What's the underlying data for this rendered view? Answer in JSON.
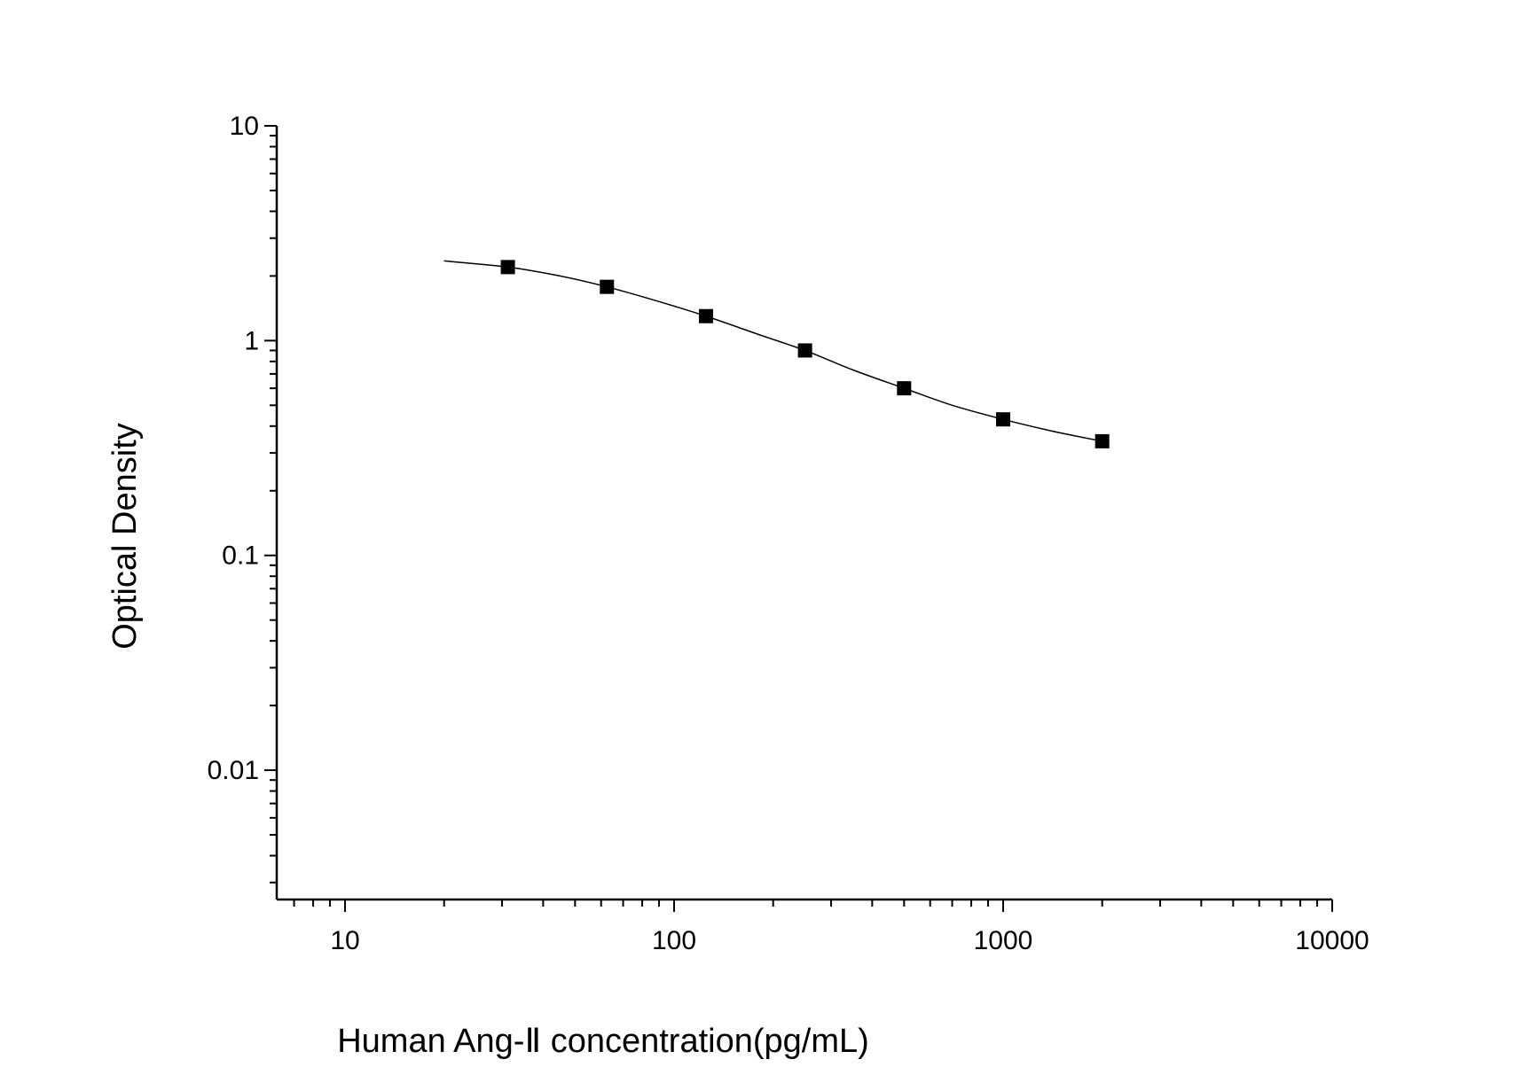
{
  "chart_data": {
    "type": "scatter",
    "title": "",
    "xlabel": "Human Ang-Ⅱ concentration(pg/mL)",
    "ylabel": "Optical Density",
    "x_scale": "log",
    "y_scale": "log",
    "xlim": [
      6.2,
      10000
    ],
    "ylim": [
      0.0025,
      10
    ],
    "x_ticks": [
      {
        "value": 10,
        "label": "10"
      },
      {
        "value": 100,
        "label": "100"
      },
      {
        "value": 1000,
        "label": "1000"
      },
      {
        "value": 10000,
        "label": "10000"
      }
    ],
    "y_ticks": [
      {
        "value": 0.01,
        "label": "0.01"
      },
      {
        "value": 0.1,
        "label": "0.1"
      },
      {
        "value": 1,
        "label": "1"
      },
      {
        "value": 10,
        "label": "10"
      }
    ],
    "grid": false,
    "legend": "none",
    "series": [
      {
        "x": [
          31.25,
          62.5,
          125,
          250,
          500,
          1000,
          2000
        ],
        "y": [
          2.2,
          1.78,
          1.3,
          0.9,
          0.6,
          0.43,
          0.34
        ],
        "marker": "square",
        "color": "#000000"
      }
    ],
    "fit_curve": {
      "x": [
        20,
        31.25,
        45,
        62.5,
        90,
        125,
        180,
        250,
        350,
        500,
        700,
        1000,
        1400,
        2000
      ],
      "y": [
        2.35,
        2.2,
        2.0,
        1.78,
        1.52,
        1.3,
        1.07,
        0.9,
        0.73,
        0.6,
        0.5,
        0.43,
        0.38,
        0.34
      ],
      "color": "#000000"
    }
  }
}
